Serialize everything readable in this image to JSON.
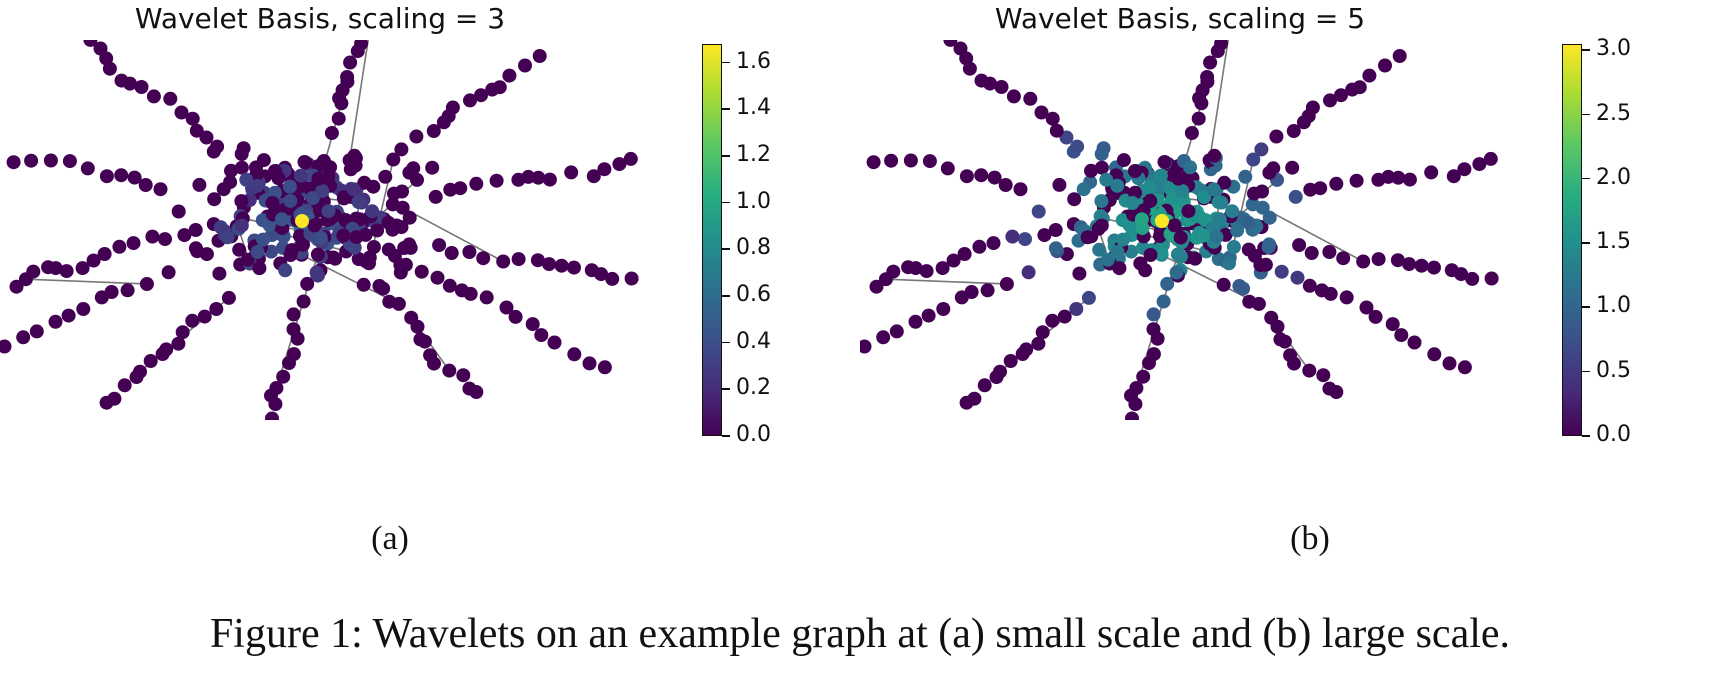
{
  "chart_data": [
    {
      "type": "scatter",
      "subtype": "graph-network",
      "title": "Wavelet Basis, scaling = 3",
      "panel_label": "(a)",
      "colorbar": {
        "colormap": "viridis",
        "range": [
          0.0,
          1.68
        ],
        "ticks": [
          "0.0",
          "0.2",
          "0.4",
          "0.6",
          "0.8",
          "1.0",
          "1.2",
          "1.4",
          "1.6"
        ]
      },
      "max_value": 1.68,
      "spread": 0.35
    },
    {
      "type": "scatter",
      "subtype": "graph-network",
      "title": "Wavelet Basis, scaling = 5",
      "panel_label": "(b)",
      "colorbar": {
        "colormap": "viridis",
        "range": [
          0.0,
          3.05
        ],
        "ticks": [
          "0.0",
          "0.5",
          "1.0",
          "1.5",
          "2.0",
          "2.5",
          "3.0"
        ]
      },
      "max_value": 3.05,
      "spread": 1.0
    }
  ],
  "caption": "Figure 1: Wavelets on an example graph at (a) small scale and (b) large scale."
}
